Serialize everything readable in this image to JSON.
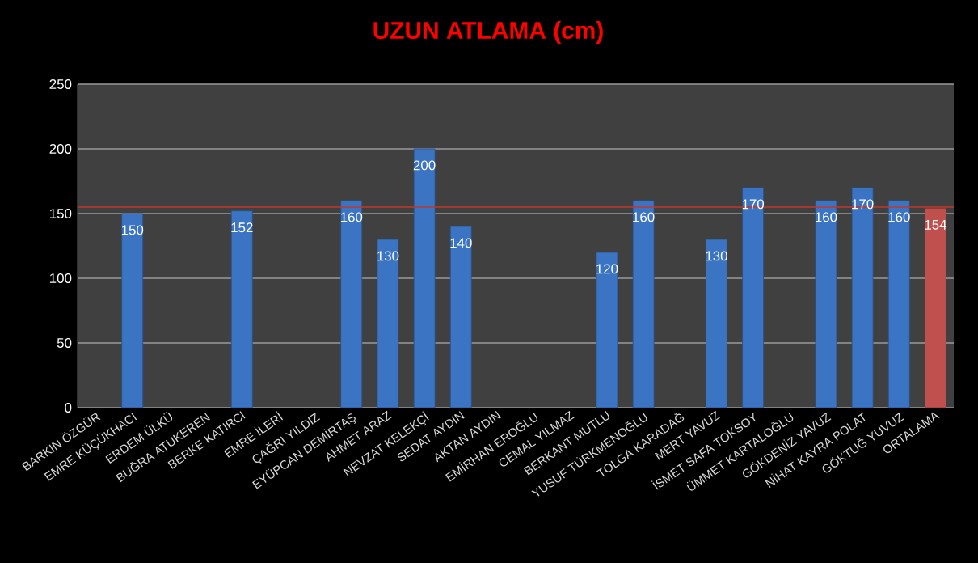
{
  "chart_data": {
    "type": "bar",
    "title": "UZUN ATLAMA (cm)",
    "categories": [
      "BARKIN ÖZGÜR",
      "EMRE KÜÇÜKHACI",
      "ERDEM ÜLKÜ",
      "BUĞRA ATUKEREN",
      "BERKE KATIRCI",
      "EMRE İLERİ",
      "ÇAĞRI YILDIZ",
      "EYÜPCAN DEMİRTAŞ",
      "AHMET ARAZ",
      "NEVZAT KELEKÇİ",
      "SEDAT AYDIN",
      "AKTAN AYDIN",
      "EMİRHAN EROĞLU",
      "CEMAL YILMAZ",
      "BERKANT MUTLU",
      "YUSUF TÜRKMENOĞLU",
      "TOLGA KARADAĞ",
      "MERT YAVUZ",
      "İSMET SAFA TOKSOY",
      "ÜMMET KARTALOĞLU",
      "GÖKDENİZ YAVUZ",
      "NİHAT KAYRA POLAT",
      "GÖKTUĞ YUVUZ",
      "ORTALAMA"
    ],
    "values": [
      null,
      150,
      null,
      null,
      152,
      null,
      null,
      160,
      130,
      200,
      140,
      null,
      null,
      null,
      120,
      160,
      null,
      130,
      170,
      null,
      160,
      170,
      160,
      154
    ],
    "colors": [
      "#3b74c2",
      "#3b74c2",
      "#3b74c2",
      "#3b74c2",
      "#3b74c2",
      "#3b74c2",
      "#3b74c2",
      "#3b74c2",
      "#3b74c2",
      "#3b74c2",
      "#3b74c2",
      "#3b74c2",
      "#3b74c2",
      "#3b74c2",
      "#3b74c2",
      "#3b74c2",
      "#3b74c2",
      "#3b74c2",
      "#3b74c2",
      "#3b74c2",
      "#3b74c2",
      "#3b74c2",
      "#3b74c2",
      "#c0504d"
    ],
    "data_labels": true,
    "ylim": [
      0,
      250
    ],
    "yticks": [
      0,
      50,
      100,
      150,
      200,
      250
    ],
    "grid": "y",
    "ref_lines": [
      {
        "axis": "y",
        "value": 155,
        "color": "#c0392b"
      }
    ]
  }
}
